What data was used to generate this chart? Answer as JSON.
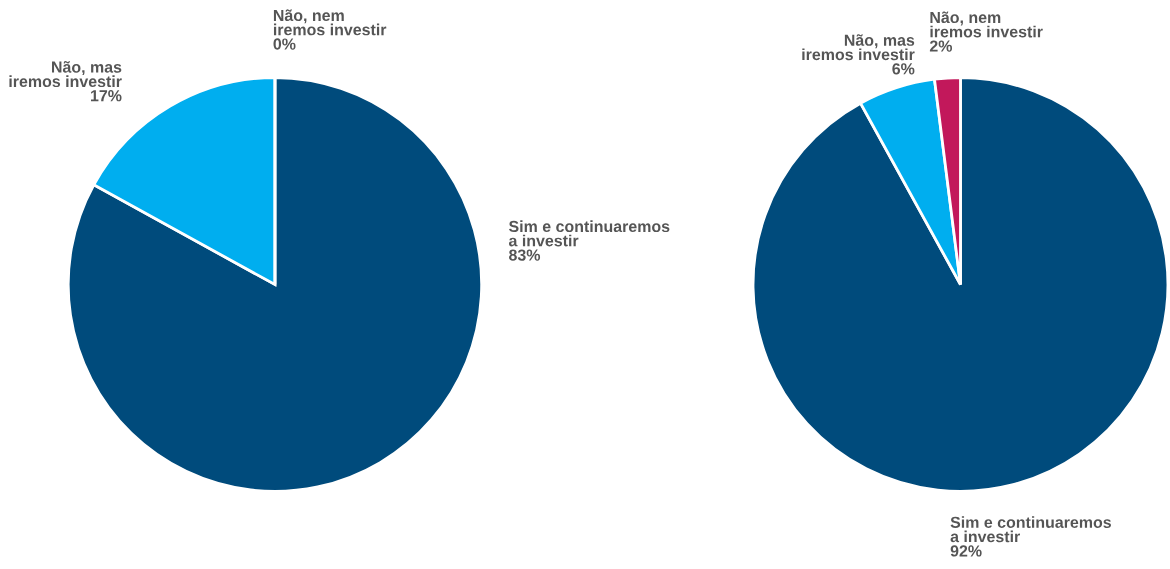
{
  "chart_data": [
    {
      "type": "pie",
      "categories": [
        "Sim e continuaremos\na investir",
        "Não, mas\niremos investir",
        "Não, nem\niremos investir"
      ],
      "values": [
        83,
        17,
        0
      ],
      "value_labels": [
        "83%",
        "17%",
        "0%"
      ],
      "colors": [
        "#004b7c",
        "#00aeef",
        "#c2185b"
      ]
    },
    {
      "type": "pie",
      "categories": [
        "Sim e continuaremos\na investir",
        "Não, mas\niremos investir",
        "Não, nem\niremos investir"
      ],
      "values": [
        92,
        6,
        2
      ],
      "value_labels": [
        "92%",
        "6%",
        "2%"
      ],
      "colors": [
        "#004b7c",
        "#00aeef",
        "#c2185b"
      ]
    }
  ]
}
